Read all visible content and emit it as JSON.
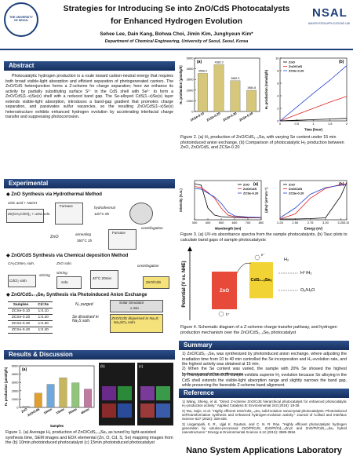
{
  "header": {
    "title_line1": "Strategies for Introducing Se into ZnO/CdS Photocatalysts",
    "title_line2": "for Enhanced Hydrogen Evolution",
    "authors": "Sehee Lee, Dain Kang, Bohwa Choi, Jimin Kim, Junghyeun Kim*",
    "affiliation": "Department of Chemical Engineering, University of Seoul, Seoul, Korea",
    "left_logo": "THE UNIVERSITY OF SEOUL",
    "right_logo": "NSAL",
    "right_logo_sub": "NANOSYSTEM APPLICATIONS LAB"
  },
  "abstract": {
    "heading": "Abstract",
    "text": "Photocatalytic hydrogen production is a route toward carbon-neutral energy that requires both broad visible-light absorption and efficient separation of photogenerated carriers. The ZnO/CdS heterojunction forms a Z-scheme for charge separation; here we enhance its activity by partially substituting surface S²⁻ in the CdS shell with Se²⁻ to form a ZnO/CdS(1−x)Se(x) shell with a reduced band gap. The Se-alloyed CdS(1−x)Se(x) layer extends visible-light absorption, introduces a band-gap gradient that promotes charge separation, and passivates sulfur vacancies, so the resulting ZnO/CdS(1−x)Se(x) heterostructure exhibits enhanced hydrogen evolution by accelerating interfacial charge transfer and suppressing photocorrosion."
  },
  "experimental": {
    "heading": "Experimental",
    "hydrothermal": {
      "title": "◆ ZnO Synthesis via Hydrothermal Method",
      "labels": [
        "citric acid + NaOH",
        "Zn(CH₃COO)₂ + urea soln.",
        "Furnace",
        "hydrothermal",
        "120°C 6h",
        "centrifugation",
        "Furnace",
        "annealing",
        "350°C 2h",
        "ZnO"
      ]
    },
    "chemical": {
      "title": "◆ ZnO/CdS Synthesis via Chemical deposition Method",
      "labels": [
        "CH₃CSNH₂ soln.",
        "ZnO soln.",
        "stirring",
        "centrifugation",
        "CdCl₂ soln.",
        "stirring",
        "soln.",
        "40°C 20min",
        "ZnO/CdS"
      ]
    },
    "exchange": {
      "title": "◆ ZnO/CdS₁₋ₓSeₓ Synthesis via Photoinduced Anion Exchange",
      "table": {
        "header": [
          "Samples",
          "Cd:Se"
        ],
        "rows": [
          [
            "ZCSe-0.10",
            "1:0.10"
          ],
          [
            "ZCSe-0.20",
            "1:0.20"
          ],
          [
            "ZCSe-0.30",
            "1:0.30"
          ],
          [
            "ZCSe-0.40",
            "1:0.40"
          ]
        ]
      },
      "labels": [
        "N₂ purged",
        "Solar Simulator",
        "x min",
        "Se dissolved in Na₂S soln.",
        "ZnO/CdS dispersed in Na₂S · Na₂SO₃ soln."
      ]
    }
  },
  "results": {
    "heading": "Results & Discussion",
    "figure1": {
      "a": {
        "type": "bar",
        "label": "(a)",
        "y_label": "H₂ production (μmol/g/h)",
        "x_label": "Samples",
        "categories": [
          "ZnO",
          "ZnO/CdS",
          "10min",
          "15min",
          "20min",
          "40min"
        ],
        "values": [
          120,
          1713,
          2780,
          3568,
          2960,
          2210
        ],
        "colors": [
          "#9e9e9e",
          "#e0a030",
          "#6fa8dc",
          "#c8b560",
          "#93c47d",
          "#c27ba0"
        ],
        "ylim": [
          0,
          5000
        ],
        "yticks": [
          0,
          1000,
          2000,
          3000,
          4000,
          5000
        ]
      },
      "panels": [
        "(b)",
        "(c)"
      ],
      "caption": "Figure 1. (a) Average H₂ production of ZnO/CdS₁₋ₓSeₓ as tuned by light-assisted synthesis time, SEM images and EDX elemental (Zn, O, Cd, S, Se) mapping images from the (b) 10min photoinduced photocatalyst (c) 15min photoinduced photocatalyst"
    }
  },
  "figure2": {
    "a": {
      "type": "bar",
      "label": "(a)",
      "y_label": "H₂ production (μmol/g/h)",
      "categories": [
        "ZCSe-0.10",
        "ZCSe-0.20",
        "ZCSe-0.30",
        "ZCSe-0.40"
      ],
      "values": [
        3568.4,
        4382.3,
        2882.3,
        1984.8
      ],
      "colors": [
        "#d6c77a",
        "#d6c77a",
        "#d6c77a",
        "#d6c77a"
      ],
      "show_values": true,
      "ylim": [
        0,
        5000
      ],
      "yticks": [
        0,
        1000,
        2000,
        3000,
        4000,
        5000
      ]
    },
    "b": {
      "type": "line",
      "label": "(b)",
      "y_label": "H₂ production (mmol/g/h)",
      "x_label": "Time (hour)",
      "legend": "top-left",
      "x": [
        0,
        0.5,
        1,
        1.5,
        2
      ],
      "xlim": [
        0,
        2
      ],
      "xticks": [
        0,
        0.5,
        1,
        1.5,
        2
      ],
      "ylim": [
        0,
        10
      ],
      "yticks": [
        0,
        2,
        4,
        6,
        8,
        10
      ],
      "series": [
        {
          "name": "ZnO",
          "color": "#000000",
          "values": [
            0,
            0.1,
            0.2,
            0.3,
            0.4
          ]
        },
        {
          "name": "ZnO/CdS",
          "color": "#e02020",
          "values": [
            0,
            1,
            2,
            3,
            3.9
          ]
        },
        {
          "name": "ZCSe-0.20",
          "color": "#2040d0",
          "values": [
            0,
            2.2,
            4.4,
            6.5,
            8.8
          ]
        }
      ]
    },
    "caption": "Figure 2. (a) H₂ production of ZnO/CdS₁₋ₓSeₓ with varying Se content under 15 min photoinduced anion exchange, (b) Comparison of photocatalytic H₂ production between ZnO, ZnO/CdS, and ZCSe-0.20"
  },
  "figure3": {
    "a": {
      "type": "line",
      "label": "(a)",
      "y_label": "Intensity (A.U.)",
      "x_label": "Wavelength (nm)",
      "legend": "top-right",
      "x": [
        300,
        350,
        400,
        450,
        500,
        550,
        600,
        700,
        800
      ],
      "xlim": [
        300,
        800
      ],
      "xticks": [
        300,
        400,
        500,
        600,
        700,
        800
      ],
      "ylim": [
        0,
        1
      ],
      "series": [
        {
          "name": "ZnO",
          "color": "#000000",
          "values": [
            0.92,
            0.88,
            0.3,
            0.12,
            0.08,
            0.07,
            0.06,
            0.05,
            0.05
          ]
        },
        {
          "name": "ZnO/CdS",
          "color": "#e02020",
          "values": [
            0.85,
            0.82,
            0.7,
            0.55,
            0.3,
            0.12,
            0.08,
            0.06,
            0.05
          ]
        },
        {
          "name": "ZCSe-0.20",
          "color": "#2040d0",
          "values": [
            0.8,
            0.78,
            0.68,
            0.58,
            0.42,
            0.2,
            0.1,
            0.07,
            0.06
          ]
        }
      ]
    },
    "b": {
      "type": "line",
      "label": "(b)",
      "y_label": "(αhν)² (eV²cm⁻²)",
      "x_label": "Energy (eV)",
      "legend": "top-left",
      "x": [
        2.25,
        2.5,
        2.75,
        3,
        3.25,
        3.35
      ],
      "xlim": [
        2.25,
        3.35
      ],
      "xticks": [
        2.25,
        {
          "value": 2.5,
          "label": "2.50"
        },
        2.75,
        {
          "value": 3,
          "label": "3.00"
        },
        3.25,
        3.35
      ],
      "ylim": [
        0,
        1
      ],
      "series": [
        {
          "name": "ZnO",
          "color": "#000000",
          "values": [
            0.02,
            0.02,
            0.03,
            0.05,
            0.6,
            0.95
          ]
        },
        {
          "name": "ZnO/CdS",
          "color": "#e02020",
          "values": [
            0.02,
            0.15,
            0.55,
            0.8,
            0.9,
            0.92
          ]
        },
        {
          "name": "ZCSe-0.20",
          "color": "#2040d0",
          "values": [
            0.05,
            0.3,
            0.65,
            0.82,
            0.88,
            0.9
          ]
        }
      ]
    },
    "caption": "Figure 3. (a) UV-vis absorbance spectra from the sample photocatalysts, (b) Tauc plots to calculate band gaps of sample photocatalysts"
  },
  "figure4": {
    "labels": [
      "Potential (V vs. NHE)",
      "ZnO",
      "CdS₁₋ₓSeₓ",
      "H⁺/H₂",
      "O₂/H₂O",
      "H₂",
      "h⁺",
      "e⁻"
    ],
    "caption": "Figure 4. Schematic diagram of a Z-scheme charge transfer pathway, and hydrogen production mechanism over the ZnO/CdS₁₋ₓSeₓ photocatalyst"
  },
  "summary": {
    "heading": "Summary",
    "items": [
      "1) ZnO/CdS₁₋ₓSeₓ was synthesized by photoinduced anion exchange, where adjusting the irradiation time from 10 to 40 min controlled the Se incorporation and H₂-evolution rate, and the highest activity was obtained at 15 min.",
      "2) When the Se content was varied, the sample with 20% Se showed the highest hydrogen-production performance.",
      "3) The optimal ZCSe-0.20 sample exhibits superior H₂ evolution because Se alloying in the CdS shell extends the visible-light absorption range and slightly narrows the band gap, while preserving the favorable Z-scheme band alignment."
    ]
  },
  "references": {
    "heading": "Reference",
    "items": [
      "1) Wang, Sheng, et al. \"Direct Z-scheme ZnO/CdS hierarchical photocatalyst for enhanced photocatalytic H₂-production activity.\" Applied Catalysis B: Environmental 243 (2019): 19-26.",
      "2) Tao, Sujie, et al. \"Highly efficient ZnO/CdS₁₋ₓSeₓ solid-solution nanocrystal photocatalysts: Photoinduced self-transformation synthesis and enhanced hydrogen-evolution activity.\" Journal of Colloid and Interface Science 627 (2022): 328-336.",
      "3) Lingampalli, S. R., Ujjal K. Gautam, and C. N. R. Rao. \"Highly efficient photocatalytic hydrogen generation by solution-processed ZnO/Pt/CdS, ZnO/Pt/Cd₁₋ₓZnₓS and ZnO/Pt/CdS₁₋ₓSeₓ hybrid nanostructures.\" Energy & Environmental Science 6.12 (2013): 3589-3594."
    ]
  },
  "footer": "Nano System Applications Laboratory"
}
